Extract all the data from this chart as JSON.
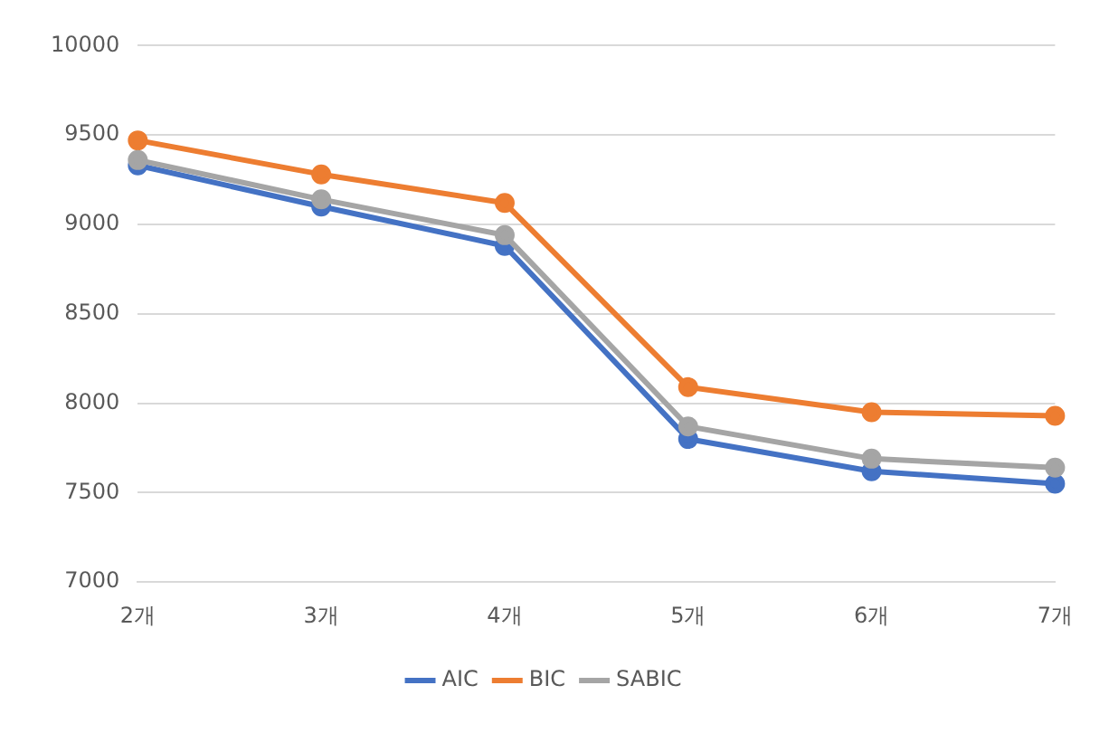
{
  "chart_data": {
    "type": "line",
    "categories": [
      "2개",
      "3개",
      "4개",
      "5개",
      "6개",
      "7개"
    ],
    "series": [
      {
        "name": "AIC",
        "color": "#4472c4",
        "values": [
          9330,
          9100,
          8880,
          7800,
          7620,
          7550
        ]
      },
      {
        "name": "BIC",
        "color": "#ed7d31",
        "values": [
          9470,
          9280,
          9120,
          8090,
          7950,
          7930
        ]
      },
      {
        "name": "SABIC",
        "color": "#a5a5a5",
        "values": [
          9360,
          9140,
          8940,
          7870,
          7690,
          7640
        ]
      }
    ],
    "ylim": [
      7000,
      10000
    ],
    "yticks": [
      7000,
      7500,
      8000,
      8500,
      9000,
      9500,
      10000
    ],
    "grid": "y",
    "legend": "bottom",
    "marker": "circle",
    "line_style": "solid"
  }
}
